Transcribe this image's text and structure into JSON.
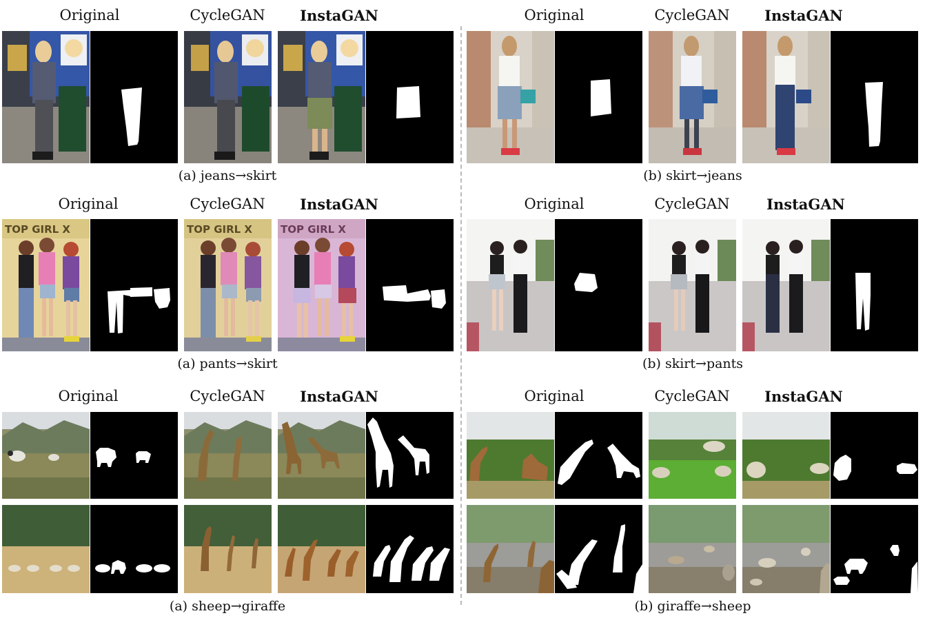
{
  "headers": {
    "original": "Original",
    "cyclegan": "CycleGAN",
    "instagan": "InstaGAN"
  },
  "captions": {
    "r1_left": "(a) jeans→skirt",
    "r1_right": "(b) skirt→jeans",
    "r2_left": "(a) pants→skirt",
    "r2_right": "(b) skirt→pants",
    "r3_left": "(a) sheep→giraffe",
    "r3_right": "(b) giraffe→sheep"
  },
  "colors": {
    "mask_bg": "#000000",
    "mask_fg": "#ffffff",
    "divider": "#b9b9b9"
  }
}
